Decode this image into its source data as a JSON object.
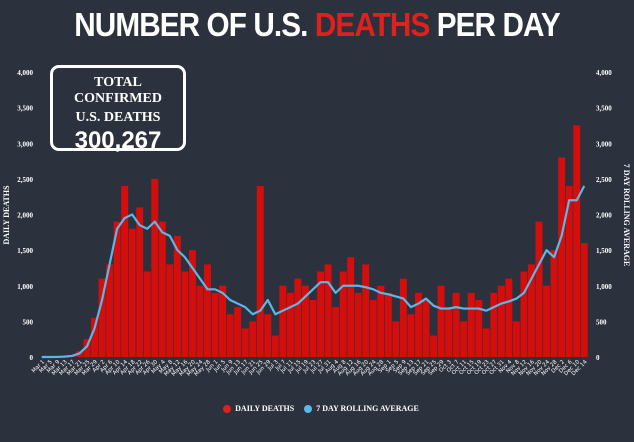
{
  "title": {
    "part1": "NUMBER OF U.S. ",
    "highlight": "DEATHS",
    "part2": " PER DAY"
  },
  "total_box": {
    "line1": "TOTAL CONFIRMED",
    "line2": "U.S. DEATHS",
    "value": "300,267"
  },
  "colors": {
    "background": "#2c323d",
    "bars": "#d40d0d",
    "line": "#5bb8e6",
    "title_highlight": "#e0201c"
  },
  "chart_data": {
    "type": "bar+line",
    "ylabel_left": "DAILY DEATHS",
    "ylabel_right": "7 DAY ROLLING AVERAGE",
    "ylim": [
      0,
      4000
    ],
    "yticks": [
      "0",
      "500",
      "1,000",
      "1,500",
      "2,000",
      "2,500",
      "3,000",
      "3,500",
      "4,000"
    ],
    "grid": false,
    "legend_placement": "bottom",
    "x": [
      "Mar 1",
      "Mar 5",
      "Mar 9",
      "Mar 13",
      "Mar 17",
      "Mar 21",
      "Mar 25",
      "Mar 29",
      "Apr 2",
      "Apr 6",
      "Apr 10",
      "Apr 14",
      "Apr 18",
      "Apr 22",
      "Apr 26",
      "Apr 30",
      "May 4",
      "May 8",
      "May 12",
      "May 16",
      "May 20",
      "May 24",
      "May 28",
      "Jun 1",
      "Jun 5",
      "Jun 9",
      "Jun 13",
      "Jun 17",
      "Jun 21",
      "Jun 25",
      "Jun 29",
      "Jul 3",
      "Jul 7",
      "Jul 11",
      "Jul 15",
      "Jul 19",
      "Jul 23",
      "Jul 27",
      "Jul 31",
      "Aug 4",
      "Aug 8",
      "Aug 12",
      "Aug 16",
      "Aug 20",
      "Aug 24",
      "Aug 28",
      "Sep 1",
      "Sep 5",
      "Sep 9",
      "Sep 13",
      "Sep 17",
      "Sep 21",
      "Sep 25",
      "Sep 29",
      "Oct 3",
      "Oct 7",
      "Oct 11",
      "Oct 15",
      "Oct 19",
      "Oct 23",
      "Oct 27",
      "Oct 31",
      "Nov 4",
      "Nov 8",
      "Nov 12",
      "Nov 16",
      "Nov 20",
      "Nov 24",
      "Nov 28",
      "Dec 2",
      "Dec 6",
      "Dec 10",
      "Dec 14"
    ],
    "series": [
      {
        "name": "DAILY DEATHS",
        "type": "bar",
        "values": [
          0,
          0,
          2,
          8,
          20,
          80,
          250,
          550,
          1100,
          1300,
          1900,
          2400,
          1800,
          2100,
          1200,
          2500,
          1900,
          1300,
          1700,
          1200,
          1500,
          1000,
          1300,
          900,
          1000,
          600,
          700,
          400,
          500,
          2400,
          600,
          300,
          1000,
          900,
          1100,
          1000,
          800,
          1200,
          1300,
          700,
          1200,
          1400,
          900,
          1300,
          800,
          1000,
          900,
          500,
          1100,
          600,
          900,
          800,
          300,
          1000,
          700,
          900,
          500,
          900,
          800,
          400,
          900,
          1000,
          1100,
          500,
          1200,
          1300,
          1900,
          1000,
          1500,
          2800,
          2400,
          3250,
          1600
        ]
      },
      {
        "name": "7 DAY ROLLING AVERAGE",
        "type": "line",
        "values": [
          0,
          0,
          1,
          5,
          15,
          50,
          150,
          400,
          800,
          1300,
          1800,
          1950,
          2000,
          1850,
          1800,
          1900,
          1750,
          1700,
          1500,
          1400,
          1250,
          1100,
          950,
          950,
          900,
          800,
          750,
          700,
          600,
          650,
          800,
          600,
          650,
          700,
          750,
          850,
          950,
          1050,
          1050,
          900,
          1000,
          1000,
          1000,
          980,
          950,
          900,
          880,
          850,
          820,
          700,
          750,
          820,
          720,
          680,
          680,
          700,
          680,
          680,
          680,
          650,
          700,
          750,
          780,
          820,
          900,
          1100,
          1300,
          1500,
          1400,
          1700,
          2200,
          2200,
          2400
        ]
      }
    ]
  }
}
